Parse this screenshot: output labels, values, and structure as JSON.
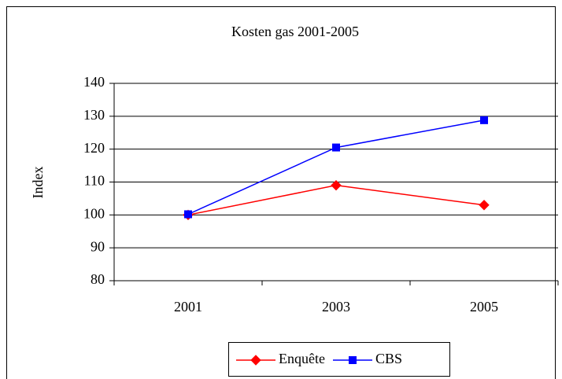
{
  "chart_data": {
    "type": "line",
    "title": "Kosten gas 2001-2005",
    "y_label": "Index",
    "categories": [
      "2001",
      "2003",
      "2005"
    ],
    "series": [
      {
        "name": "Enquête",
        "color": "#ff0000",
        "marker": "diamond",
        "values": [
          100,
          109,
          103
        ]
      },
      {
        "name": "CBS",
        "color": "#0000ff",
        "marker": "square",
        "values": [
          100.2,
          120.5,
          128.8
        ]
      }
    ],
    "ylim": [
      80,
      140
    ],
    "yticks": [
      80,
      90,
      100,
      110,
      120,
      130,
      140
    ],
    "grid": true,
    "legend": "bottom"
  }
}
